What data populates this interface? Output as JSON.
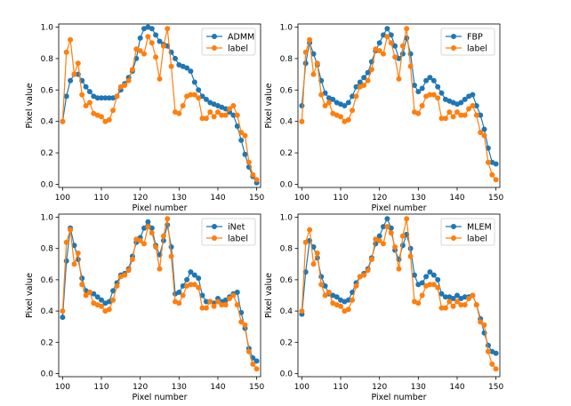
{
  "chart_data": [
    {
      "type": "line",
      "panel": "ADMM",
      "xlabel": "Pixel number",
      "ylabel": "Pixel value",
      "xlim": [
        99,
        151
      ],
      "ylim": [
        -0.02,
        1.02
      ],
      "xticks": [
        100,
        110,
        120,
        130,
        140,
        150
      ],
      "yticks": [
        0.0,
        0.2,
        0.4,
        0.6,
        0.8,
        1.0
      ],
      "legend": "top-right",
      "series": [
        {
          "name": "ADMM",
          "color": "#1f77b4",
          "x": [
            100,
            101,
            102,
            103,
            104,
            105,
            106,
            107,
            108,
            109,
            110,
            111,
            112,
            113,
            114,
            115,
            116,
            117,
            118,
            119,
            120,
            121,
            122,
            123,
            124,
            125,
            126,
            127,
            128,
            129,
            130,
            131,
            132,
            133,
            134,
            135,
            136,
            137,
            138,
            139,
            140,
            141,
            142,
            143,
            144,
            145,
            146,
            147,
            148,
            149,
            150
          ],
          "values": [
            0.4,
            0.56,
            0.66,
            0.7,
            0.7,
            0.66,
            0.62,
            0.59,
            0.56,
            0.55,
            0.55,
            0.55,
            0.55,
            0.55,
            0.56,
            0.6,
            0.64,
            0.68,
            0.72,
            0.8,
            0.93,
            0.99,
            1.0,
            0.99,
            0.95,
            0.91,
            0.89,
            0.88,
            0.84,
            0.8,
            0.76,
            0.75,
            0.74,
            0.72,
            0.65,
            0.6,
            0.56,
            0.54,
            0.52,
            0.51,
            0.5,
            0.49,
            0.48,
            0.46,
            0.44,
            0.37,
            0.28,
            0.19,
            0.11,
            0.05,
            0.01
          ]
        },
        {
          "name": "label",
          "color": "#ff7f0e",
          "x": [
            100,
            101,
            102,
            103,
            104,
            105,
            106,
            107,
            108,
            109,
            110,
            111,
            112,
            113,
            114,
            115,
            116,
            117,
            118,
            119,
            120,
            121,
            122,
            123,
            124,
            125,
            126,
            127,
            128,
            129,
            130,
            131,
            132,
            133,
            134,
            135,
            136,
            137,
            138,
            139,
            140,
            141,
            142,
            143,
            144,
            145,
            146,
            147,
            148,
            149,
            150
          ],
          "values": [
            0.4,
            0.84,
            0.92,
            0.7,
            0.77,
            0.57,
            0.5,
            0.52,
            0.45,
            0.44,
            0.43,
            0.4,
            0.41,
            0.47,
            0.56,
            0.62,
            0.63,
            0.66,
            0.73,
            0.86,
            0.85,
            0.83,
            0.94,
            0.9,
            0.81,
            0.67,
            0.88,
            0.99,
            0.75,
            0.46,
            0.45,
            0.5,
            0.56,
            0.57,
            0.57,
            0.55,
            0.42,
            0.42,
            0.46,
            0.43,
            0.46,
            0.44,
            0.44,
            0.48,
            0.5,
            0.44,
            0.33,
            0.31,
            0.14,
            0.06,
            0.03
          ]
        }
      ]
    },
    {
      "type": "line",
      "panel": "FBP",
      "xlabel": "Pixel number",
      "ylabel": "Pixel value",
      "xlim": [
        99,
        151
      ],
      "ylim": [
        -0.02,
        1.02
      ],
      "xticks": [
        100,
        110,
        120,
        130,
        140,
        150
      ],
      "yticks": [
        0.0,
        0.2,
        0.4,
        0.6,
        0.8,
        1.0
      ],
      "legend": "top-right",
      "series": [
        {
          "name": "FBP",
          "color": "#1f77b4",
          "x": [
            100,
            101,
            102,
            103,
            104,
            105,
            106,
            107,
            108,
            109,
            110,
            111,
            112,
            113,
            114,
            115,
            116,
            117,
            118,
            119,
            120,
            121,
            122,
            123,
            124,
            125,
            126,
            127,
            128,
            129,
            130,
            131,
            132,
            133,
            134,
            135,
            136,
            137,
            138,
            139,
            140,
            141,
            142,
            143,
            144,
            145,
            146,
            147,
            148,
            149,
            150
          ],
          "values": [
            0.5,
            0.77,
            0.9,
            0.83,
            0.76,
            0.66,
            0.58,
            0.55,
            0.54,
            0.52,
            0.51,
            0.5,
            0.52,
            0.56,
            0.62,
            0.65,
            0.68,
            0.71,
            0.78,
            0.85,
            0.9,
            0.95,
            0.99,
            0.95,
            0.88,
            0.8,
            0.83,
            0.93,
            0.83,
            0.63,
            0.59,
            0.61,
            0.66,
            0.68,
            0.66,
            0.62,
            0.58,
            0.54,
            0.53,
            0.52,
            0.51,
            0.52,
            0.54,
            0.56,
            0.57,
            0.5,
            0.44,
            0.35,
            0.23,
            0.14,
            0.13
          ]
        },
        {
          "name": "label",
          "color": "#ff7f0e",
          "x": [
            100,
            101,
            102,
            103,
            104,
            105,
            106,
            107,
            108,
            109,
            110,
            111,
            112,
            113,
            114,
            115,
            116,
            117,
            118,
            119,
            120,
            121,
            122,
            123,
            124,
            125,
            126,
            127,
            128,
            129,
            130,
            131,
            132,
            133,
            134,
            135,
            136,
            137,
            138,
            139,
            140,
            141,
            142,
            143,
            144,
            145,
            146,
            147,
            148,
            149,
            150
          ],
          "values": [
            0.4,
            0.84,
            0.92,
            0.7,
            0.77,
            0.57,
            0.5,
            0.52,
            0.45,
            0.44,
            0.43,
            0.4,
            0.41,
            0.47,
            0.56,
            0.62,
            0.63,
            0.66,
            0.73,
            0.86,
            0.85,
            0.83,
            0.94,
            0.9,
            0.81,
            0.67,
            0.88,
            0.99,
            0.75,
            0.46,
            0.45,
            0.5,
            0.56,
            0.57,
            0.57,
            0.55,
            0.42,
            0.42,
            0.46,
            0.43,
            0.46,
            0.44,
            0.44,
            0.48,
            0.5,
            0.44,
            0.33,
            0.31,
            0.14,
            0.06,
            0.03
          ]
        }
      ]
    },
    {
      "type": "line",
      "panel": "iNet",
      "xlabel": "Pixel number",
      "ylabel": "Pixel value",
      "xlim": [
        99,
        151
      ],
      "ylim": [
        -0.02,
        1.02
      ],
      "xticks": [
        100,
        110,
        120,
        130,
        140,
        150
      ],
      "yticks": [
        0.0,
        0.2,
        0.4,
        0.6,
        0.8,
        1.0
      ],
      "legend": "top-right",
      "series": [
        {
          "name": "iNet",
          "color": "#1f77b4",
          "x": [
            100,
            101,
            102,
            103,
            104,
            105,
            106,
            107,
            108,
            109,
            110,
            111,
            112,
            113,
            114,
            115,
            116,
            117,
            118,
            119,
            120,
            121,
            122,
            123,
            124,
            125,
            126,
            127,
            128,
            129,
            130,
            131,
            132,
            133,
            134,
            135,
            136,
            137,
            138,
            139,
            140,
            141,
            142,
            143,
            144,
            145,
            146,
            147,
            148,
            149,
            150
          ],
          "values": [
            0.36,
            0.72,
            0.93,
            0.82,
            0.73,
            0.61,
            0.53,
            0.52,
            0.51,
            0.49,
            0.47,
            0.45,
            0.46,
            0.53,
            0.58,
            0.63,
            0.64,
            0.67,
            0.75,
            0.84,
            0.87,
            0.93,
            0.97,
            0.93,
            0.82,
            0.76,
            0.85,
            0.95,
            0.81,
            0.51,
            0.52,
            0.56,
            0.6,
            0.65,
            0.63,
            0.61,
            0.5,
            0.46,
            0.46,
            0.45,
            0.48,
            0.46,
            0.47,
            0.49,
            0.51,
            0.52,
            0.39,
            0.29,
            0.16,
            0.1,
            0.08
          ]
        },
        {
          "name": "label",
          "color": "#ff7f0e",
          "x": [
            100,
            101,
            102,
            103,
            104,
            105,
            106,
            107,
            108,
            109,
            110,
            111,
            112,
            113,
            114,
            115,
            116,
            117,
            118,
            119,
            120,
            121,
            122,
            123,
            124,
            125,
            126,
            127,
            128,
            129,
            130,
            131,
            132,
            133,
            134,
            135,
            136,
            137,
            138,
            139,
            140,
            141,
            142,
            143,
            144,
            145,
            146,
            147,
            148,
            149,
            150
          ],
          "values": [
            0.4,
            0.84,
            0.92,
            0.7,
            0.77,
            0.57,
            0.5,
            0.52,
            0.45,
            0.44,
            0.43,
            0.4,
            0.41,
            0.47,
            0.56,
            0.62,
            0.63,
            0.66,
            0.73,
            0.86,
            0.85,
            0.83,
            0.94,
            0.9,
            0.81,
            0.67,
            0.88,
            0.99,
            0.75,
            0.46,
            0.45,
            0.5,
            0.56,
            0.57,
            0.57,
            0.55,
            0.42,
            0.42,
            0.46,
            0.43,
            0.46,
            0.44,
            0.44,
            0.48,
            0.5,
            0.44,
            0.33,
            0.31,
            0.14,
            0.06,
            0.03
          ]
        }
      ]
    },
    {
      "type": "line",
      "panel": "MLEM",
      "xlabel": "Pixel number",
      "ylabel": "Pixel value",
      "xlim": [
        99,
        151
      ],
      "ylim": [
        -0.02,
        1.02
      ],
      "xticks": [
        100,
        110,
        120,
        130,
        140,
        150
      ],
      "yticks": [
        0.0,
        0.2,
        0.4,
        0.6,
        0.8,
        1.0
      ],
      "legend": "top-right",
      "series": [
        {
          "name": "MLEM",
          "color": "#1f77b4",
          "x": [
            100,
            101,
            102,
            103,
            104,
            105,
            106,
            107,
            108,
            109,
            110,
            111,
            112,
            113,
            114,
            115,
            116,
            117,
            118,
            119,
            120,
            121,
            122,
            123,
            124,
            125,
            126,
            127,
            128,
            129,
            130,
            131,
            132,
            133,
            134,
            135,
            136,
            137,
            138,
            139,
            140,
            141,
            142,
            143,
            144,
            145,
            146,
            147,
            148,
            149,
            150
          ],
          "values": [
            0.38,
            0.65,
            0.85,
            0.81,
            0.74,
            0.62,
            0.56,
            0.51,
            0.5,
            0.49,
            0.47,
            0.46,
            0.47,
            0.52,
            0.58,
            0.62,
            0.64,
            0.67,
            0.74,
            0.83,
            0.88,
            0.94,
            0.99,
            0.93,
            0.79,
            0.73,
            0.82,
            0.89,
            0.8,
            0.63,
            0.57,
            0.58,
            0.62,
            0.65,
            0.63,
            0.6,
            0.51,
            0.49,
            0.49,
            0.48,
            0.5,
            0.48,
            0.49,
            0.49,
            0.5,
            0.44,
            0.35,
            0.26,
            0.18,
            0.14,
            0.13
          ]
        },
        {
          "name": "label",
          "color": "#ff7f0e",
          "x": [
            100,
            101,
            102,
            103,
            104,
            105,
            106,
            107,
            108,
            109,
            110,
            111,
            112,
            113,
            114,
            115,
            116,
            117,
            118,
            119,
            120,
            121,
            122,
            123,
            124,
            125,
            126,
            127,
            128,
            129,
            130,
            131,
            132,
            133,
            134,
            135,
            136,
            137,
            138,
            139,
            140,
            141,
            142,
            143,
            144,
            145,
            146,
            147,
            148,
            149,
            150
          ],
          "values": [
            0.4,
            0.84,
            0.92,
            0.7,
            0.77,
            0.57,
            0.5,
            0.52,
            0.45,
            0.44,
            0.43,
            0.4,
            0.41,
            0.47,
            0.56,
            0.62,
            0.63,
            0.66,
            0.73,
            0.86,
            0.85,
            0.83,
            0.94,
            0.9,
            0.81,
            0.67,
            0.88,
            0.99,
            0.75,
            0.46,
            0.45,
            0.5,
            0.56,
            0.57,
            0.57,
            0.55,
            0.42,
            0.42,
            0.46,
            0.43,
            0.46,
            0.44,
            0.44,
            0.48,
            0.5,
            0.44,
            0.33,
            0.31,
            0.14,
            0.06,
            0.03
          ]
        }
      ]
    }
  ]
}
